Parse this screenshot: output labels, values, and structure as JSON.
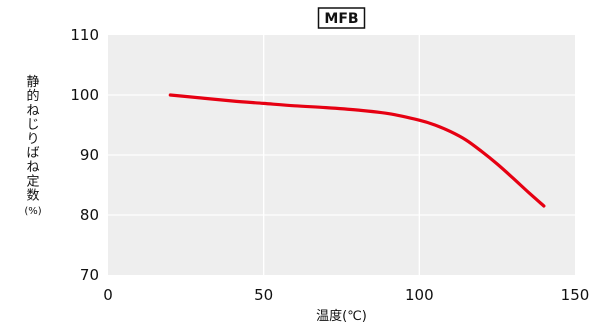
{
  "chart_data": {
    "type": "line",
    "title": "MFB",
    "xlabel": "温度(℃)",
    "ylabel_lines": [
      "静",
      "的",
      "ね",
      "じ",
      "り",
      "ば",
      "ね",
      "定",
      "数"
    ],
    "ylabel_unit": "(%)",
    "xlim": [
      0,
      150
    ],
    "ylim": [
      70,
      110
    ],
    "xticks": [
      0,
      50,
      100,
      150
    ],
    "yticks": [
      70,
      80,
      90,
      100,
      110
    ],
    "grid": true,
    "series": [
      {
        "color": "#e60012",
        "x": [
          20,
          30,
          40,
          50,
          60,
          70,
          80,
          90,
          100,
          105,
          110,
          115,
          120,
          125,
          130,
          135,
          140
        ],
        "y": [
          100,
          99.5,
          99.0,
          98.6,
          98.2,
          97.9,
          97.5,
          96.9,
          95.8,
          95.0,
          93.9,
          92.5,
          90.6,
          88.5,
          86.2,
          83.8,
          81.5
        ]
      }
    ],
    "colors": {
      "plot_bg": "#eeeeee",
      "grid": "#ffffff"
    }
  }
}
